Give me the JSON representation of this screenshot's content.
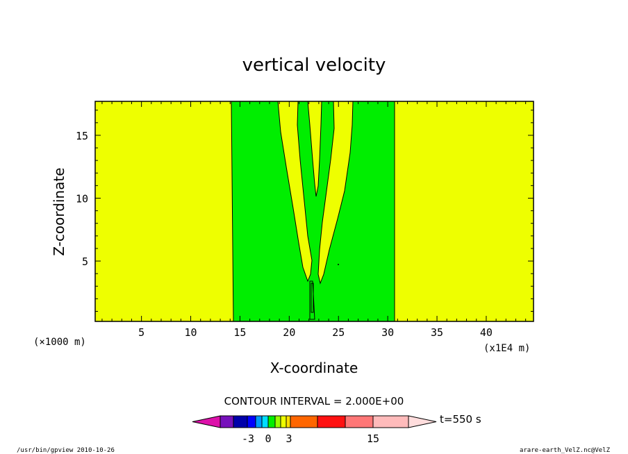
{
  "chart_data": {
    "type": "heatmap",
    "title": "vertical velocity",
    "xlabel": "X-coordinate",
    "ylabel": "Z-coordinate",
    "x_unit": "(×1000 m)",
    "x_unit_right": "(x1E4 m)",
    "xlim": [
      0.3,
      44.8
    ],
    "ylim": [
      0.2,
      17.7
    ],
    "xticks": [
      5,
      10,
      15,
      20,
      25,
      30,
      35,
      40
    ],
    "yticks": [
      5,
      10,
      15
    ],
    "contour_interval_text": "CONTOUR INTERVAL = 2.000E+00",
    "colorbar_labels": [
      "-3",
      "0",
      "3",
      "15"
    ],
    "time_label": "t=550 s",
    "regions": [
      {
        "name": "background",
        "color": "#eeff00"
      },
      {
        "name": "updraft-band",
        "color": "#00ee00",
        "x_range": [
          14.3,
          30.9
        ]
      }
    ],
    "colors": {
      "yellow": "#eeff00",
      "green": "#00ee00",
      "colorbar": [
        "#dd11aa",
        "#7711bb",
        "#0000aa",
        "#0000ff",
        "#0099ff",
        "#00ddff",
        "#00ee00",
        "#99ff00",
        "#eeff00",
        "#ffdd00",
        "#ffaa00",
        "#ff6600",
        "#ff1111",
        "#ff7777",
        "#ffbbbb",
        "#ffdddd"
      ]
    }
  },
  "footer": {
    "left": "/usr/bin/gpview   2010-10-26",
    "right": "arare-earth_VelZ.nc@VelZ"
  }
}
